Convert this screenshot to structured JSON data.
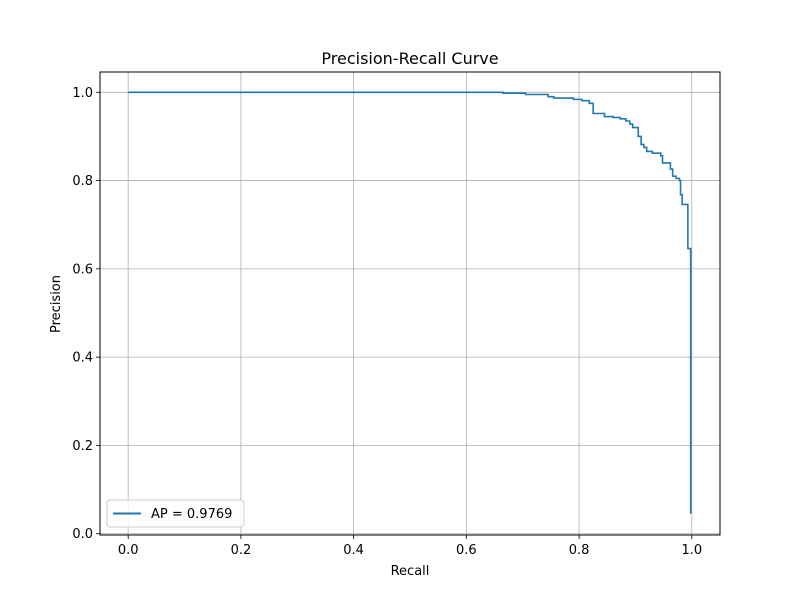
{
  "chart_data": {
    "type": "line",
    "title": "Precision-Recall Curve",
    "xlabel": "Recall",
    "ylabel": "Precision",
    "xlim": [
      -0.05,
      1.05
    ],
    "ylim": [
      -0.003,
      1.046
    ],
    "xticks": [
      0.0,
      0.2,
      0.4,
      0.6,
      0.8,
      1.0
    ],
    "yticks": [
      0.0,
      0.2,
      0.4,
      0.6,
      0.8,
      1.0
    ],
    "xtick_labels": [
      "0.0",
      "0.2",
      "0.4",
      "0.6",
      "0.8",
      "1.0"
    ],
    "ytick_labels": [
      "0.0",
      "0.2",
      "0.4",
      "0.6",
      "0.8",
      "1.0"
    ],
    "grid": true,
    "legend_position": "lower-left",
    "series": [
      {
        "name": "AP = 0.9769",
        "color": "#1f77b4",
        "drawstyle": "steps-post",
        "points": [
          [
            0.0,
            1.0
          ],
          [
            0.665,
            1.0
          ],
          [
            0.665,
            0.998
          ],
          [
            0.705,
            0.998
          ],
          [
            0.705,
            0.995
          ],
          [
            0.745,
            0.995
          ],
          [
            0.745,
            0.99
          ],
          [
            0.755,
            0.99
          ],
          [
            0.755,
            0.987
          ],
          [
            0.79,
            0.987
          ],
          [
            0.79,
            0.984
          ],
          [
            0.805,
            0.984
          ],
          [
            0.805,
            0.981
          ],
          [
            0.818,
            0.981
          ],
          [
            0.818,
            0.975
          ],
          [
            0.825,
            0.975
          ],
          [
            0.825,
            0.952
          ],
          [
            0.845,
            0.952
          ],
          [
            0.845,
            0.945
          ],
          [
            0.86,
            0.945
          ],
          [
            0.86,
            0.943
          ],
          [
            0.873,
            0.943
          ],
          [
            0.873,
            0.94
          ],
          [
            0.883,
            0.94
          ],
          [
            0.883,
            0.935
          ],
          [
            0.89,
            0.935
          ],
          [
            0.89,
            0.928
          ],
          [
            0.895,
            0.928
          ],
          [
            0.895,
            0.92
          ],
          [
            0.905,
            0.92
          ],
          [
            0.905,
            0.9
          ],
          [
            0.91,
            0.9
          ],
          [
            0.91,
            0.882
          ],
          [
            0.915,
            0.882
          ],
          [
            0.915,
            0.875
          ],
          [
            0.92,
            0.875
          ],
          [
            0.92,
            0.866
          ],
          [
            0.93,
            0.866
          ],
          [
            0.93,
            0.862
          ],
          [
            0.945,
            0.862
          ],
          [
            0.945,
            0.856
          ],
          [
            0.948,
            0.856
          ],
          [
            0.948,
            0.84
          ],
          [
            0.962,
            0.84
          ],
          [
            0.962,
            0.826
          ],
          [
            0.966,
            0.826
          ],
          [
            0.966,
            0.81
          ],
          [
            0.972,
            0.81
          ],
          [
            0.972,
            0.805
          ],
          [
            0.978,
            0.805
          ],
          [
            0.978,
            0.8
          ],
          [
            0.98,
            0.8
          ],
          [
            0.98,
            0.768
          ],
          [
            0.983,
            0.768
          ],
          [
            0.983,
            0.746
          ],
          [
            0.993,
            0.746
          ],
          [
            0.993,
            0.646
          ],
          [
            0.998,
            0.646
          ],
          [
            0.998,
            0.045
          ]
        ]
      }
    ]
  }
}
